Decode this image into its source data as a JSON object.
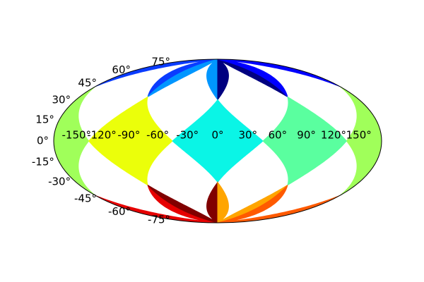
{
  "chart_data": {
    "type": "heatmap",
    "projection": "hammer",
    "colormap": "jet",
    "grid": false,
    "title": "",
    "xlabel": "",
    "ylabel": "",
    "xlim": [
      -180,
      180
    ],
    "ylim": [
      -90,
      90
    ],
    "lon_ticks": [
      -150,
      -120,
      -90,
      -60,
      -30,
      0,
      30,
      60,
      90,
      120,
      150
    ],
    "lon_tick_labels": [
      "-150°",
      "-120°",
      "-90°",
      "-60°",
      "-30°",
      "0°",
      "30°",
      "60°",
      "90°",
      "120°",
      "150°"
    ],
    "lat_ticks": [
      75,
      60,
      45,
      30,
      15,
      0,
      -15,
      -30,
      -45,
      -60,
      -75
    ],
    "lat_tick_labels": [
      "75°",
      "60°",
      "45°",
      "30°",
      "15°",
      "0°",
      "-15°",
      "-30°",
      "-45°",
      "-60°",
      "-75°"
    ],
    "pixel_colors": [
      {
        "name": "north-pole-west",
        "color": "#0a3cff",
        "ring": "north",
        "pixel": 0,
        "center_lon": -135
      },
      {
        "name": "north-pole-west-center",
        "color": "#0096ff",
        "ring": "north",
        "pixel": 1,
        "center_lon": -45
      },
      {
        "name": "north-pole-east-center",
        "color": "#000080",
        "ring": "north",
        "pixel": 2,
        "center_lon": 45
      },
      {
        "name": "north-pole-east",
        "color": "#0000ff",
        "ring": "north",
        "pixel": 3,
        "center_lon": 135
      },
      {
        "name": "equator-180",
        "color": "#a0ff5a",
        "ring": "equator",
        "pixel": 4,
        "center_lon": -180
      },
      {
        "name": "equator-minus-90",
        "color": "#ebff0a",
        "ring": "equator",
        "pixel": 5,
        "center_lon": -90
      },
      {
        "name": "equator-0",
        "color": "#0af5e6",
        "ring": "equator",
        "pixel": 6,
        "center_lon": 0
      },
      {
        "name": "equator-90",
        "color": "#5aff9f",
        "ring": "equator",
        "pixel": 7,
        "center_lon": 90
      },
      {
        "name": "south-pole-west",
        "color": "#e60000",
        "ring": "south",
        "pixel": 8,
        "center_lon": -135
      },
      {
        "name": "south-pole-west-center",
        "color": "#800000",
        "ring": "south",
        "pixel": 9,
        "center_lon": -45
      },
      {
        "name": "south-pole-east-center",
        "color": "#ffa500",
        "ring": "south",
        "pixel": 10,
        "center_lon": 45
      },
      {
        "name": "south-pole-east",
        "color": "#ff5a00",
        "ring": "south",
        "pixel": 11,
        "center_lon": 135
      }
    ]
  }
}
